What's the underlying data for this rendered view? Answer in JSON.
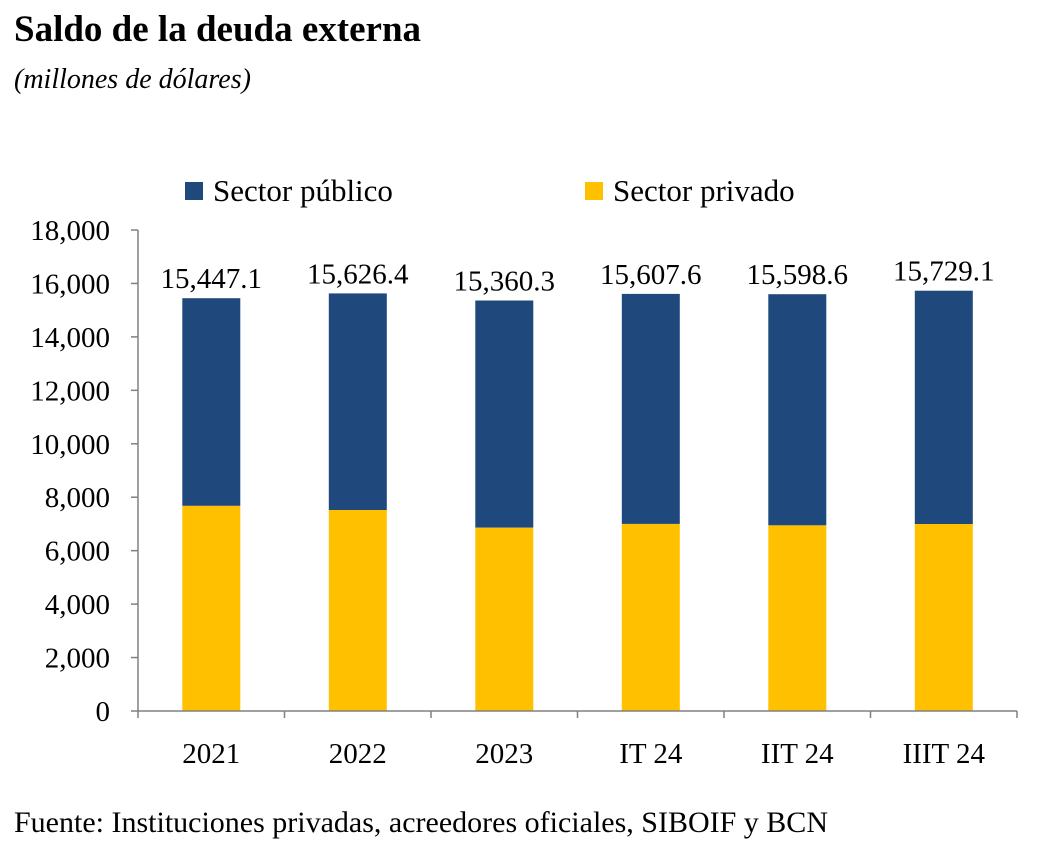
{
  "title": "Saldo de la deuda externa",
  "subtitle": "(millones de dólares)",
  "source": "Fuente: Instituciones privadas, acreedores oficiales, SIBOIF y BCN",
  "colors": {
    "sector_publico": "#1F497D",
    "sector_privado": "#FFC000"
  },
  "chart_data": {
    "type": "bar",
    "stacked": true,
    "categories": [
      "2021",
      "2022",
      "2023",
      "IT 24",
      "IIT 24",
      "IIIT 24"
    ],
    "series": [
      {
        "name": "Sector privado",
        "values": [
          7680,
          7520,
          6860,
          7000,
          6950,
          7000
        ]
      },
      {
        "name": "Sector público",
        "values": [
          7767.1,
          8106.4,
          8500.3,
          8607.6,
          8648.6,
          8729.1
        ]
      }
    ],
    "totals": [
      15447.1,
      15626.4,
      15360.3,
      15607.6,
      15598.6,
      15729.1
    ],
    "total_labels": [
      "15,447.1",
      "15,626.4",
      "15,360.3",
      "15,607.6",
      "15,598.6",
      "15,729.1"
    ],
    "ylim": [
      0,
      18000
    ],
    "yticks": [
      0,
      2000,
      4000,
      6000,
      8000,
      10000,
      12000,
      14000,
      16000,
      18000
    ],
    "ytick_labels": [
      "0",
      "2,000",
      "4,000",
      "6,000",
      "8,000",
      "10,000",
      "12,000",
      "14,000",
      "16,000",
      "18,000"
    ],
    "legend": {
      "position": "top",
      "entries": [
        "Sector público",
        "Sector privado"
      ]
    },
    "xlabel": "",
    "ylabel": "",
    "grid": false
  }
}
